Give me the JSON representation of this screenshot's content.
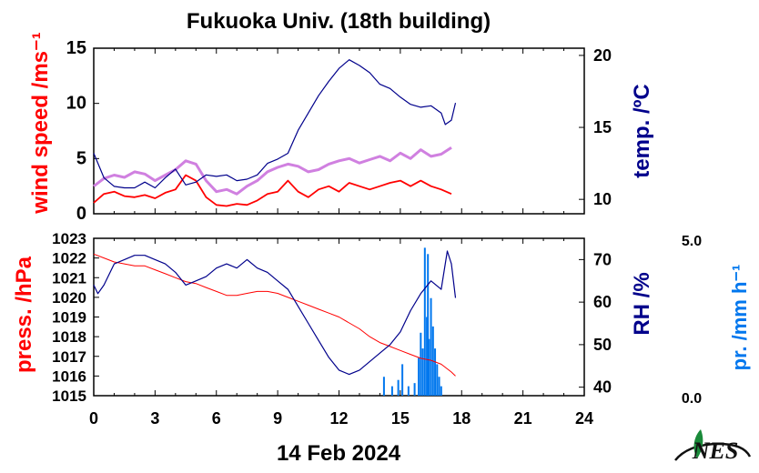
{
  "title": "Fukuoka Univ. (18th building)",
  "date_label": "14 Feb 2024",
  "colors": {
    "wind": "#ff0000",
    "wind_gust": "#d080e0",
    "temp": "#00008b",
    "pressure": "#ff0000",
    "rh": "#00008b",
    "precip": "#0077ee",
    "logo": "#111111",
    "logo_leaf": "#1a8a3a"
  },
  "logo": {
    "text": "NES"
  },
  "chart_data": [
    {
      "type": "line",
      "panel": "top",
      "x_unit": "hours",
      "xlim": [
        0,
        24
      ],
      "x_ticks": [
        0,
        3,
        6,
        9,
        12,
        15,
        18,
        21,
        24
      ],
      "left_axis": {
        "label": "wind speed /ms⁻¹",
        "ylim": [
          0,
          15
        ],
        "ticks": [
          0,
          5,
          10,
          15
        ]
      },
      "right_axis": {
        "label": "temp. /ºC",
        "ylim": [
          9,
          20.5
        ],
        "ticks": [
          10,
          15,
          20
        ]
      },
      "series": [
        {
          "axis": "left",
          "style": "wind_gust",
          "x": [
            0,
            0.5,
            1,
            1.5,
            2,
            2.5,
            3,
            3.5,
            4,
            4.5,
            5,
            5.5,
            6,
            6.5,
            7,
            7.5,
            8,
            8.5,
            9,
            9.5,
            10,
            10.5,
            11,
            11.5,
            12,
            12.5,
            13,
            13.5,
            14,
            14.5,
            15,
            15.5,
            16,
            16.5,
            17,
            17.5
          ],
          "y": [
            2.5,
            3.2,
            3.5,
            3.3,
            3.8,
            3.6,
            3.0,
            3.5,
            4.0,
            4.8,
            4.5,
            3.0,
            2.0,
            2.2,
            1.8,
            2.5,
            3.0,
            3.8,
            4.2,
            4.5,
            4.3,
            3.8,
            4.0,
            4.5,
            4.8,
            5.0,
            4.6,
            4.9,
            5.2,
            4.8,
            5.5,
            5.0,
            5.8,
            5.2,
            5.4,
            6.0
          ]
        },
        {
          "axis": "left",
          "style": "wind",
          "x": [
            0,
            0.5,
            1,
            1.5,
            2,
            2.5,
            3,
            3.5,
            4,
            4.5,
            5,
            5.5,
            6,
            6.5,
            7,
            7.5,
            8,
            8.5,
            9,
            9.5,
            10,
            10.5,
            11,
            11.5,
            12,
            12.5,
            13,
            13.5,
            14,
            14.5,
            15,
            15.5,
            16,
            16.5,
            17,
            17.5
          ],
          "y": [
            1.0,
            1.8,
            2.0,
            1.6,
            1.5,
            1.7,
            1.4,
            1.9,
            2.2,
            3.5,
            3.0,
            1.5,
            0.8,
            0.7,
            0.9,
            0.8,
            1.2,
            1.8,
            2.0,
            3.0,
            2.0,
            1.5,
            2.2,
            2.5,
            2.0,
            2.8,
            2.5,
            2.2,
            2.5,
            2.8,
            3.0,
            2.5,
            3.0,
            2.5,
            2.2,
            1.8
          ]
        },
        {
          "axis": "right",
          "style": "temp",
          "x": [
            0,
            0.5,
            1,
            1.5,
            2,
            2.5,
            3,
            3.5,
            4,
            4.5,
            5,
            5.5,
            6,
            6.5,
            7,
            7.5,
            8,
            8.5,
            9,
            9.5,
            10,
            10.5,
            11,
            11.5,
            12,
            12.5,
            13,
            13.5,
            14,
            14.5,
            15,
            15.5,
            16,
            16.5,
            17,
            17.2,
            17.5,
            17.7
          ],
          "y": [
            13.2,
            11.5,
            10.9,
            10.8,
            10.8,
            11.2,
            10.8,
            11.5,
            12.1,
            11.0,
            11.2,
            11.7,
            11.6,
            11.7,
            11.3,
            11.4,
            11.7,
            12.5,
            12.8,
            13.2,
            14.8,
            16.0,
            17.2,
            18.2,
            19.1,
            19.7,
            19.3,
            18.8,
            18.0,
            17.7,
            17.1,
            16.6,
            16.4,
            16.5,
            16.0,
            15.2,
            15.5,
            16.7
          ]
        }
      ]
    },
    {
      "type": "line",
      "panel": "bottom",
      "x_unit": "hours",
      "xlim": [
        0,
        24
      ],
      "x_ticks": [
        0,
        3,
        6,
        9,
        12,
        15,
        18,
        21,
        24
      ],
      "left_axis": {
        "label": "press. /hPa",
        "ylim": [
          1015,
          1023
        ],
        "ticks": [
          1015,
          1016,
          1017,
          1018,
          1019,
          1020,
          1021,
          1022,
          1023
        ]
      },
      "right_axis": {
        "label": "RH /%",
        "ylim": [
          38,
          75
        ],
        "ticks": [
          40,
          50,
          60,
          70
        ]
      },
      "precip_axis": {
        "label": "pr. /mm h⁻¹",
        "ylim": [
          0,
          5
        ],
        "ticks": [
          "5.0",
          "0.0"
        ]
      },
      "series": [
        {
          "axis": "left",
          "style": "pressure",
          "x": [
            0,
            0.5,
            1,
            1.5,
            2,
            2.5,
            3,
            3.5,
            4,
            4.5,
            5,
            5.5,
            6,
            6.5,
            7,
            7.5,
            8,
            8.5,
            9,
            9.5,
            10,
            10.5,
            11,
            11.5,
            12,
            12.5,
            13,
            13.5,
            14,
            14.5,
            15,
            15.5,
            16,
            16.5,
            17,
            17.5,
            17.7
          ],
          "y": [
            1022.2,
            1022.0,
            1021.8,
            1021.7,
            1021.6,
            1021.6,
            1021.4,
            1021.2,
            1021.0,
            1020.8,
            1020.7,
            1020.5,
            1020.3,
            1020.1,
            1020.1,
            1020.2,
            1020.3,
            1020.3,
            1020.2,
            1020.0,
            1019.8,
            1019.6,
            1019.4,
            1019.2,
            1019.0,
            1018.7,
            1018.4,
            1018.0,
            1017.7,
            1017.5,
            1017.3,
            1017.1,
            1016.9,
            1016.8,
            1016.6,
            1016.2,
            1016.0
          ]
        },
        {
          "axis": "right",
          "style": "rh",
          "x": [
            0,
            0.2,
            0.5,
            1,
            1.5,
            2,
            2.5,
            3,
            3.5,
            4,
            4.5,
            5,
            5.5,
            6,
            6.5,
            7,
            7.5,
            8,
            8.5,
            9,
            9.5,
            10,
            10.5,
            11,
            11.5,
            12,
            12.5,
            13,
            13.5,
            14,
            14.5,
            15,
            15.5,
            16,
            16.5,
            17,
            17.3,
            17.5,
            17.7
          ],
          "y": [
            64,
            62,
            64,
            69,
            70,
            71,
            71,
            70,
            69,
            67,
            64,
            65,
            66,
            68,
            69,
            68,
            70,
            68,
            67,
            65,
            63,
            59,
            55,
            51,
            47,
            44,
            43,
            44,
            46,
            48,
            50,
            53,
            58,
            62,
            65,
            63,
            72,
            69,
            61
          ]
        },
        {
          "axis": "precip",
          "style": "precip",
          "x": [
            14.2,
            14.6,
            14.9,
            15.1,
            15.4,
            15.7,
            15.9,
            16.0,
            16.1,
            16.2,
            16.3,
            16.35,
            16.4,
            16.5,
            16.6,
            16.7,
            16.8,
            16.9,
            17.0
          ],
          "y": [
            0.6,
            0.3,
            0.5,
            1.0,
            0.3,
            0.4,
            1.2,
            2.0,
            1.5,
            4.7,
            2.5,
            4.5,
            1.8,
            3.1,
            2.2,
            1.5,
            1.0,
            0.6,
            0.3
          ]
        }
      ]
    }
  ]
}
